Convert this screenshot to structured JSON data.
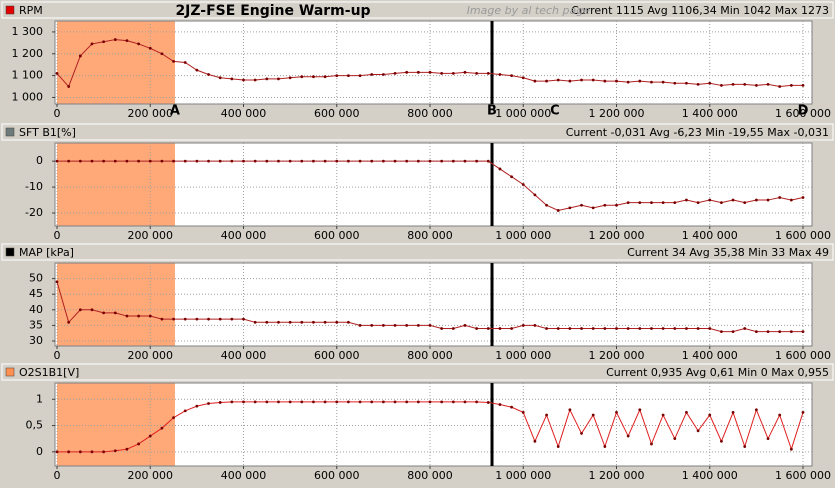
{
  "title": "2JZ-FSE Engine Warm-up",
  "watermark": "Image by al tech page",
  "chart_data": [
    {
      "type": "line",
      "legend_color": "#e00000",
      "stats": "Current 1115 Avg 1106,34 Min 1042 Max 1273",
      "x": [
        0,
        25000,
        50000,
        75000,
        100000,
        125000,
        150000,
        175000,
        200000,
        225000,
        250000,
        275000,
        300000,
        325000,
        350000,
        375000,
        400000,
        425000,
        450000,
        475000,
        500000,
        525000,
        550000,
        575000,
        600000,
        625000,
        650000,
        675000,
        700000,
        725000,
        750000,
        775000,
        800000,
        825000,
        850000,
        875000,
        900000,
        925000,
        950000,
        975000,
        1000000,
        1025000,
        1050000,
        1075000,
        1100000,
        1125000,
        1150000,
        1175000,
        1200000,
        1225000,
        1250000,
        1275000,
        1300000,
        1325000,
        1350000,
        1375000,
        1400000,
        1425000,
        1450000,
        1475000,
        1500000,
        1525000,
        1550000,
        1575000,
        1600000
      ],
      "series": [
        {
          "name": "RPM",
          "color": "#b02020",
          "values": [
            1110,
            1050,
            1190,
            1245,
            1255,
            1265,
            1260,
            1245,
            1225,
            1200,
            1165,
            1160,
            1125,
            1105,
            1090,
            1085,
            1080,
            1080,
            1085,
            1085,
            1090,
            1095,
            1095,
            1095,
            1100,
            1100,
            1100,
            1105,
            1105,
            1110,
            1115,
            1115,
            1115,
            1110,
            1110,
            1115,
            1110,
            1110,
            1105,
            1100,
            1090,
            1075,
            1075,
            1080,
            1075,
            1080,
            1080,
            1075,
            1075,
            1070,
            1075,
            1070,
            1070,
            1065,
            1065,
            1060,
            1065,
            1055,
            1060,
            1060,
            1055,
            1060,
            1050,
            1055,
            1055
          ]
        }
      ],
      "xlim": [
        -4300,
        1619300
      ],
      "xticks": [
        0,
        {
          "value": 200000,
          "label": "200 000"
        },
        {
          "value": 400000,
          "label": "400 000"
        },
        {
          "value": 600000,
          "label": "600 000"
        },
        {
          "value": 800000,
          "label": "800 000"
        },
        {
          "value": 1000000,
          "label": "1 000 000"
        },
        {
          "value": 1200000,
          "label": "1 200 000"
        },
        {
          "value": 1400000,
          "label": "1 400 000"
        },
        {
          "value": 1600000,
          "label": "1 600 000"
        }
      ],
      "ylim": [
        970,
        1350
      ],
      "yticks": [
        {
          "value": 1000,
          "label": "1 000"
        },
        {
          "value": 1100,
          "label": "1 100"
        },
        {
          "value": 1200,
          "label": "1 200"
        },
        {
          "value": 1300,
          "label": "1 300"
        }
      ],
      "grid": true,
      "highlight": [
        0,
        253000
      ],
      "highlight_color": "#ffa878",
      "marker_x": 933000,
      "annotations": [
        {
          "text": "A",
          "x": 253000
        },
        {
          "text": "B",
          "x": 933000
        },
        {
          "text": "C",
          "x": 1068000
        },
        {
          "text": "D",
          "x": 1600000
        }
      ]
    },
    {
      "type": "line",
      "legend_color": "#6e7b7b",
      "stats": "Current -0,031 Avg -6,23 Min -19,55 Max -0,031",
      "x": [
        0,
        25000,
        50000,
        75000,
        100000,
        125000,
        150000,
        175000,
        200000,
        225000,
        250000,
        275000,
        300000,
        325000,
        350000,
        375000,
        400000,
        425000,
        450000,
        475000,
        500000,
        525000,
        550000,
        575000,
        600000,
        625000,
        650000,
        675000,
        700000,
        725000,
        750000,
        775000,
        800000,
        825000,
        850000,
        875000,
        900000,
        925000,
        950000,
        975000,
        1000000,
        1025000,
        1050000,
        1075000,
        1100000,
        1125000,
        1150000,
        1175000,
        1200000,
        1225000,
        1250000,
        1275000,
        1300000,
        1325000,
        1350000,
        1375000,
        1400000,
        1425000,
        1450000,
        1475000,
        1500000,
        1525000,
        1550000,
        1575000,
        1600000
      ],
      "series": [
        {
          "name": "SFT B1[%]",
          "color": "#b02020",
          "values": [
            0,
            0,
            0,
            0,
            0,
            0,
            0,
            0,
            0,
            0,
            0,
            0,
            0,
            0,
            0,
            0,
            0,
            0,
            0,
            0,
            0,
            0,
            0,
            0,
            0,
            0,
            0,
            0,
            0,
            0,
            0,
            0,
            0,
            0,
            0,
            0,
            0,
            0,
            -3,
            -6,
            -9,
            -13,
            -17,
            -19,
            -18,
            -17,
            -18,
            -17,
            -17,
            -16,
            -16,
            -16,
            -16,
            -16,
            -15,
            -16,
            -15,
            -16,
            -15,
            -16,
            -15,
            -15,
            -14,
            -15,
            -14
          ]
        }
      ],
      "xlim": [
        -4300,
        1619300
      ],
      "xticks": [
        0,
        {
          "value": 200000,
          "label": "200 000"
        },
        {
          "value": 400000,
          "label": "400 000"
        },
        {
          "value": 600000,
          "label": "600 000"
        },
        {
          "value": 800000,
          "label": "800 000"
        },
        {
          "value": 1000000,
          "label": "1 000 000"
        },
        {
          "value": 1200000,
          "label": "1 200 000"
        },
        {
          "value": 1400000,
          "label": "1 400 000"
        },
        {
          "value": 1600000,
          "label": "1 600 000"
        }
      ],
      "ylim": [
        -25,
        7
      ],
      "yticks": [
        -20,
        -10,
        0
      ],
      "grid": true,
      "highlight": [
        0,
        253000
      ],
      "highlight_color": "#ffa878",
      "marker_x": 933000
    },
    {
      "type": "line",
      "legend_color": "#000000",
      "stats": "Current 34 Avg 35,38 Min 33 Max 49",
      "x": [
        0,
        25000,
        50000,
        75000,
        100000,
        125000,
        150000,
        175000,
        200000,
        225000,
        250000,
        275000,
        300000,
        325000,
        350000,
        375000,
        400000,
        425000,
        450000,
        475000,
        500000,
        525000,
        550000,
        575000,
        600000,
        625000,
        650000,
        675000,
        700000,
        725000,
        750000,
        775000,
        800000,
        825000,
        850000,
        875000,
        900000,
        925000,
        950000,
        975000,
        1000000,
        1025000,
        1050000,
        1075000,
        1100000,
        1125000,
        1150000,
        1175000,
        1200000,
        1225000,
        1250000,
        1275000,
        1300000,
        1325000,
        1350000,
        1375000,
        1400000,
        1425000,
        1450000,
        1475000,
        1500000,
        1525000,
        1550000,
        1575000,
        1600000
      ],
      "series": [
        {
          "name": "MAP [kPa]",
          "color": "#b02020",
          "values": [
            49,
            36,
            40,
            40,
            39,
            39,
            38,
            38,
            38,
            37,
            37,
            37,
            37,
            37,
            37,
            37,
            37,
            36,
            36,
            36,
            36,
            36,
            36,
            36,
            36,
            36,
            35,
            35,
            35,
            35,
            35,
            35,
            35,
            34,
            34,
            35,
            34,
            34,
            34,
            34,
            35,
            35,
            34,
            34,
            34,
            34,
            34,
            34,
            34,
            34,
            34,
            34,
            34,
            34,
            34,
            34,
            34,
            33,
            33,
            34,
            33,
            33,
            33,
            33,
            33
          ]
        }
      ],
      "xlim": [
        -4300,
        1619300
      ],
      "xticks": [
        0,
        {
          "value": 200000,
          "label": "200 000"
        },
        {
          "value": 400000,
          "label": "400 000"
        },
        {
          "value": 600000,
          "label": "600 000"
        },
        {
          "value": 800000,
          "label": "800 000"
        },
        {
          "value": 1000000,
          "label": "1 000 000"
        },
        {
          "value": 1200000,
          "label": "1 200 000"
        },
        {
          "value": 1400000,
          "label": "1 400 000"
        },
        {
          "value": 1600000,
          "label": "1 600 000"
        }
      ],
      "ylim": [
        28.4,
        55
      ],
      "yticks": [
        30,
        35,
        40,
        45,
        50
      ],
      "grid": true,
      "highlight": [
        0,
        253000
      ],
      "highlight_color": "#ffa878",
      "marker_x": 933000
    },
    {
      "type": "line",
      "legend_color": "#ff9050",
      "stats": "Current 0,935 Avg 0,61 Min 0 Max 0,955",
      "x": [
        0,
        25000,
        50000,
        75000,
        100000,
        125000,
        150000,
        175000,
        200000,
        225000,
        250000,
        275000,
        300000,
        325000,
        350000,
        375000,
        400000,
        425000,
        450000,
        475000,
        500000,
        525000,
        550000,
        575000,
        600000,
        625000,
        650000,
        675000,
        700000,
        725000,
        750000,
        775000,
        800000,
        825000,
        850000,
        875000,
        900000,
        925000,
        950000,
        975000,
        1000000,
        1025000,
        1050000,
        1075000,
        1100000,
        1125000,
        1150000,
        1175000,
        1200000,
        1225000,
        1250000,
        1275000,
        1300000,
        1325000,
        1350000,
        1375000,
        1400000,
        1425000,
        1450000,
        1475000,
        1500000,
        1525000,
        1550000,
        1575000,
        1600000
      ],
      "series": [
        {
          "name": "O2S1B1[V]",
          "color": "#e02020",
          "values": [
            0,
            0,
            0,
            0,
            0,
            0.02,
            0.05,
            0.15,
            0.3,
            0.45,
            0.65,
            0.78,
            0.87,
            0.92,
            0.94,
            0.95,
            0.95,
            0.95,
            0.95,
            0.95,
            0.95,
            0.95,
            0.95,
            0.95,
            0.95,
            0.95,
            0.95,
            0.95,
            0.95,
            0.95,
            0.95,
            0.95,
            0.95,
            0.95,
            0.95,
            0.95,
            0.95,
            0.94,
            0.9,
            0.85,
            0.75,
            0.2,
            0.7,
            0.1,
            0.8,
            0.35,
            0.7,
            0.1,
            0.75,
            0.3,
            0.8,
            0.15,
            0.7,
            0.25,
            0.75,
            0.4,
            0.7,
            0.2,
            0.75,
            0.1,
            0.8,
            0.25,
            0.7,
            0.05,
            0.75
          ]
        }
      ],
      "xlim": [
        -4300,
        1619300
      ],
      "xticks": [
        0,
        {
          "value": 200000,
          "label": "200 000"
        },
        {
          "value": 400000,
          "label": "400 000"
        },
        {
          "value": 600000,
          "label": "600 000"
        },
        {
          "value": 800000,
          "label": "800 000"
        },
        {
          "value": 1000000,
          "label": "1 000 000"
        },
        {
          "value": 1200000,
          "label": "1 200 000"
        },
        {
          "value": 1400000,
          "label": "1 400 000"
        },
        {
          "value": 1600000,
          "label": "1 600 000"
        }
      ],
      "ylim": [
        -0.27,
        1.31
      ],
      "yticks": [
        0,
        {
          "value": 0.5,
          "label": "0,5"
        },
        1
      ],
      "grid": true,
      "highlight": [
        0,
        253000
      ],
      "highlight_color": "#ffa878",
      "marker_x": 933000
    }
  ]
}
